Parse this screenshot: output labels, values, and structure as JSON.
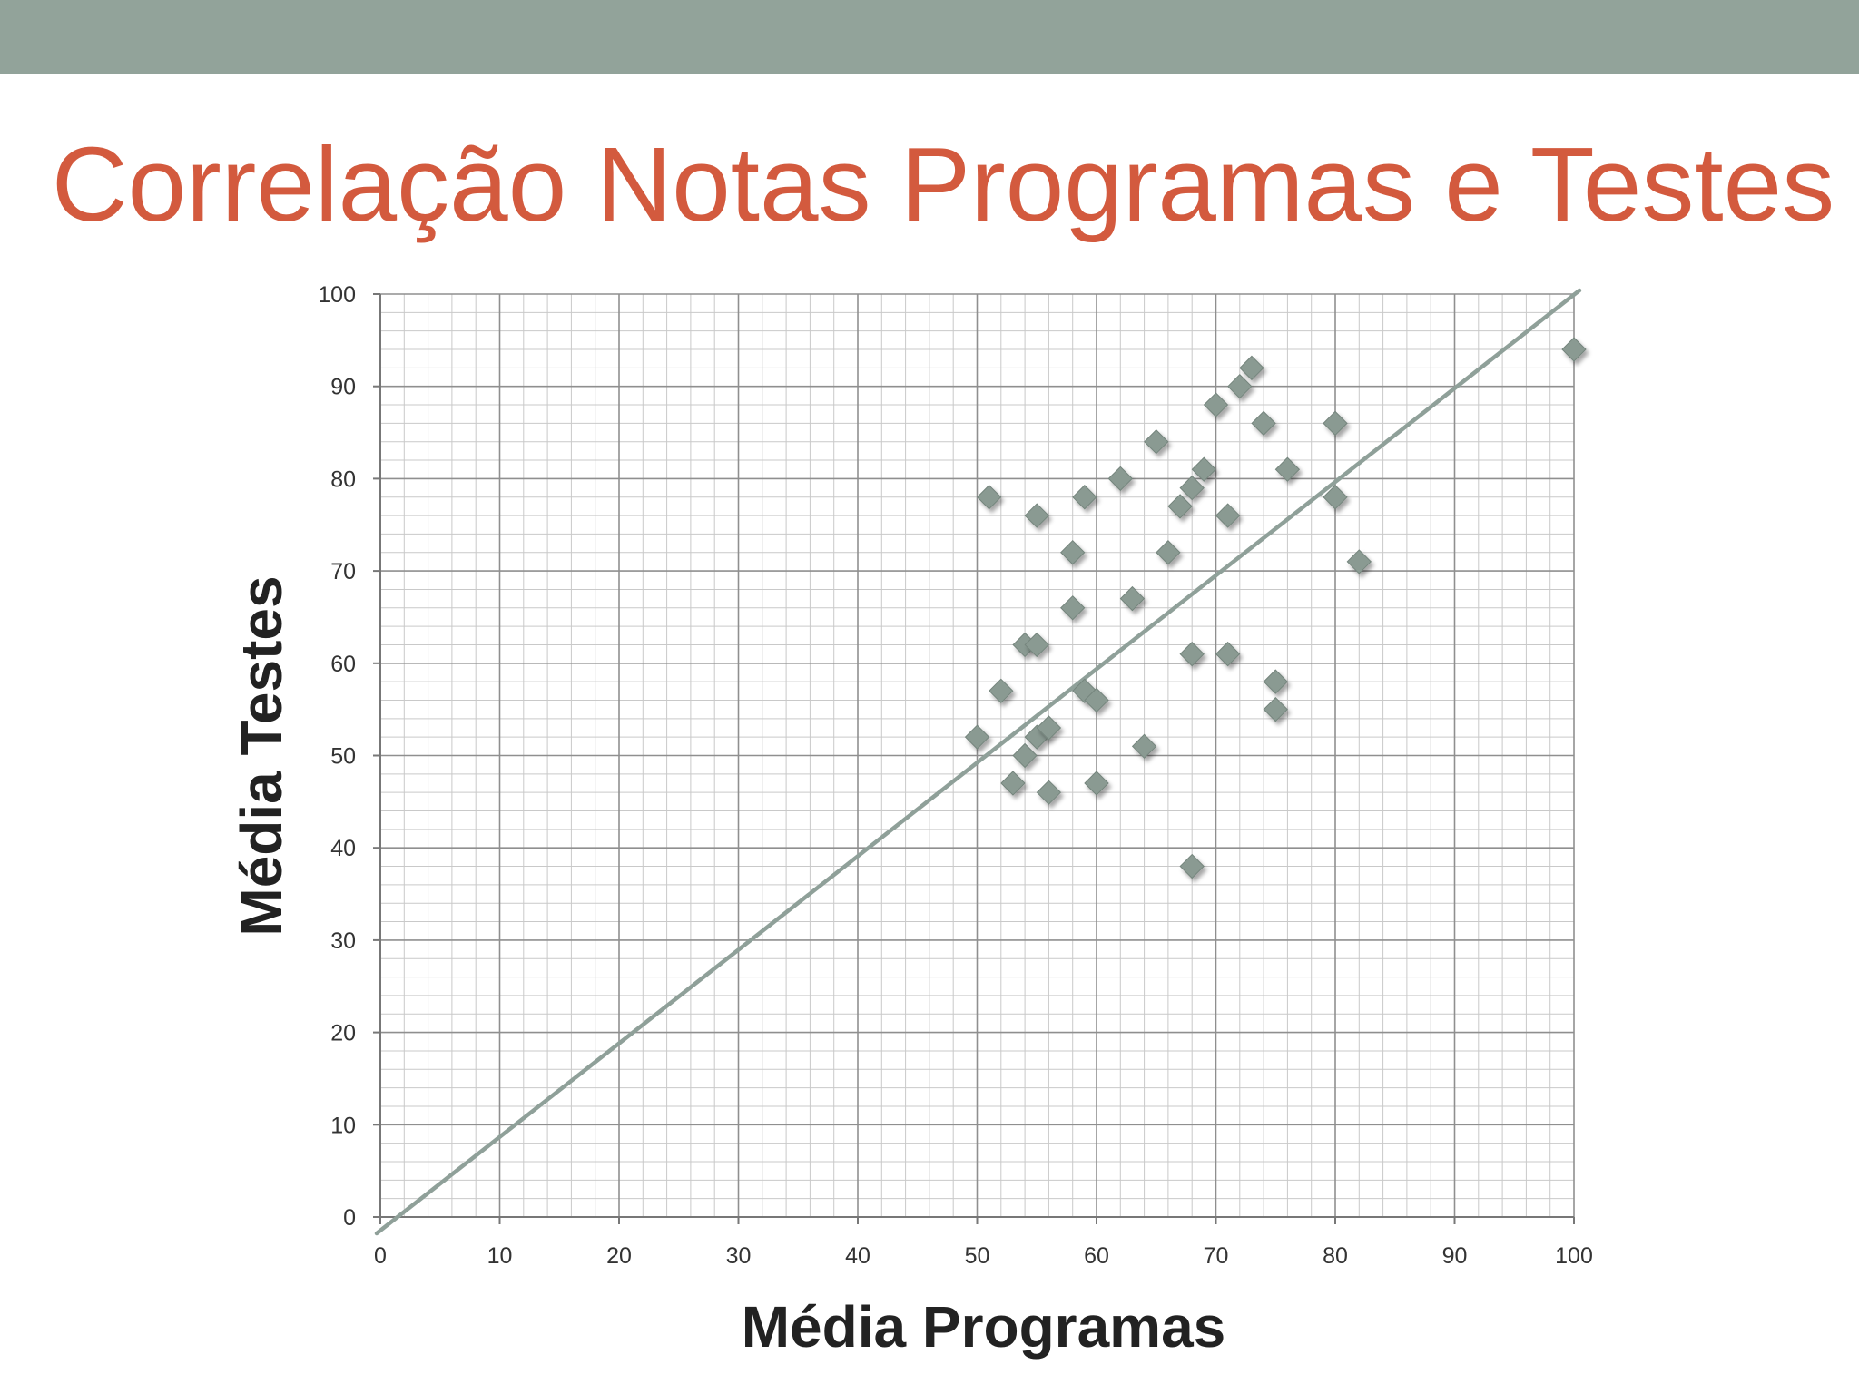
{
  "slide": {
    "title": "Correlação Notas Programas e Testes",
    "accent_bar_color": "#92a39a",
    "title_color": "#d35a3e"
  },
  "chart_data": {
    "type": "scatter",
    "xlabel": "Média Programas",
    "ylabel": "Média Testes",
    "xlim": [
      0,
      100
    ],
    "ylim": [
      0,
      100
    ],
    "x_ticks": [
      "0",
      "10",
      "20",
      "30",
      "40",
      "50",
      "60",
      "70",
      "80",
      "90",
      "100"
    ],
    "y_ticks": [
      "0",
      "10",
      "20",
      "30",
      "40",
      "50",
      "60",
      "70",
      "80",
      "90",
      "100"
    ],
    "grid": true,
    "marker": "diamond",
    "marker_color": "#8a9a92",
    "reference_line": {
      "from": [
        0,
        0
      ],
      "to": [
        100,
        100
      ],
      "color": "#8fa099"
    },
    "series": [
      {
        "points": [
          [
            50,
            52
          ],
          [
            51,
            78
          ],
          [
            52,
            57
          ],
          [
            53,
            47
          ],
          [
            54,
            50
          ],
          [
            54,
            62
          ],
          [
            55,
            52
          ],
          [
            55,
            62
          ],
          [
            55,
            76
          ],
          [
            56,
            53
          ],
          [
            56,
            46
          ],
          [
            58,
            72
          ],
          [
            58,
            66
          ],
          [
            59,
            57
          ],
          [
            59,
            78
          ],
          [
            60,
            56
          ],
          [
            60,
            47
          ],
          [
            62,
            80
          ],
          [
            63,
            67
          ],
          [
            64,
            51
          ],
          [
            65,
            84
          ],
          [
            66,
            72
          ],
          [
            67,
            77
          ],
          [
            68,
            79
          ],
          [
            68,
            61
          ],
          [
            68,
            38
          ],
          [
            69,
            81
          ],
          [
            70,
            88
          ],
          [
            71,
            76
          ],
          [
            71,
            61
          ],
          [
            72,
            90
          ],
          [
            73,
            92
          ],
          [
            74,
            86
          ],
          [
            75,
            58
          ],
          [
            75,
            55
          ],
          [
            76,
            81
          ],
          [
            80,
            86
          ],
          [
            80,
            78
          ],
          [
            82,
            71
          ],
          [
            100,
            94
          ]
        ]
      }
    ]
  }
}
